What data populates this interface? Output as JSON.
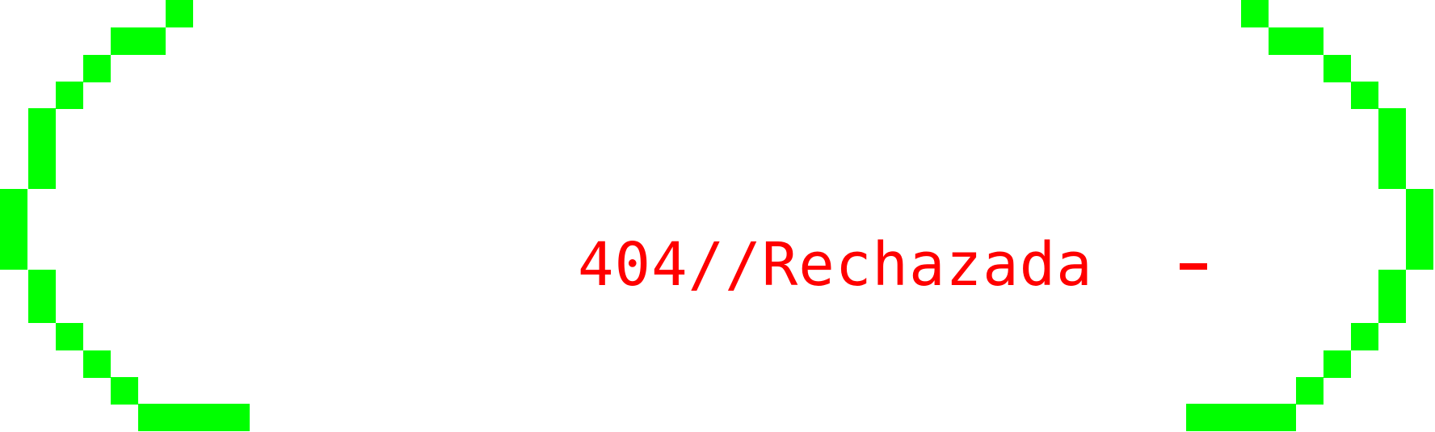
{
  "error_screen": {
    "message": "404//Rechazada",
    "separator": "-",
    "colors": {
      "bracket": "#00ff00",
      "text": "#ff0000",
      "background": "#ffffff"
    }
  }
}
